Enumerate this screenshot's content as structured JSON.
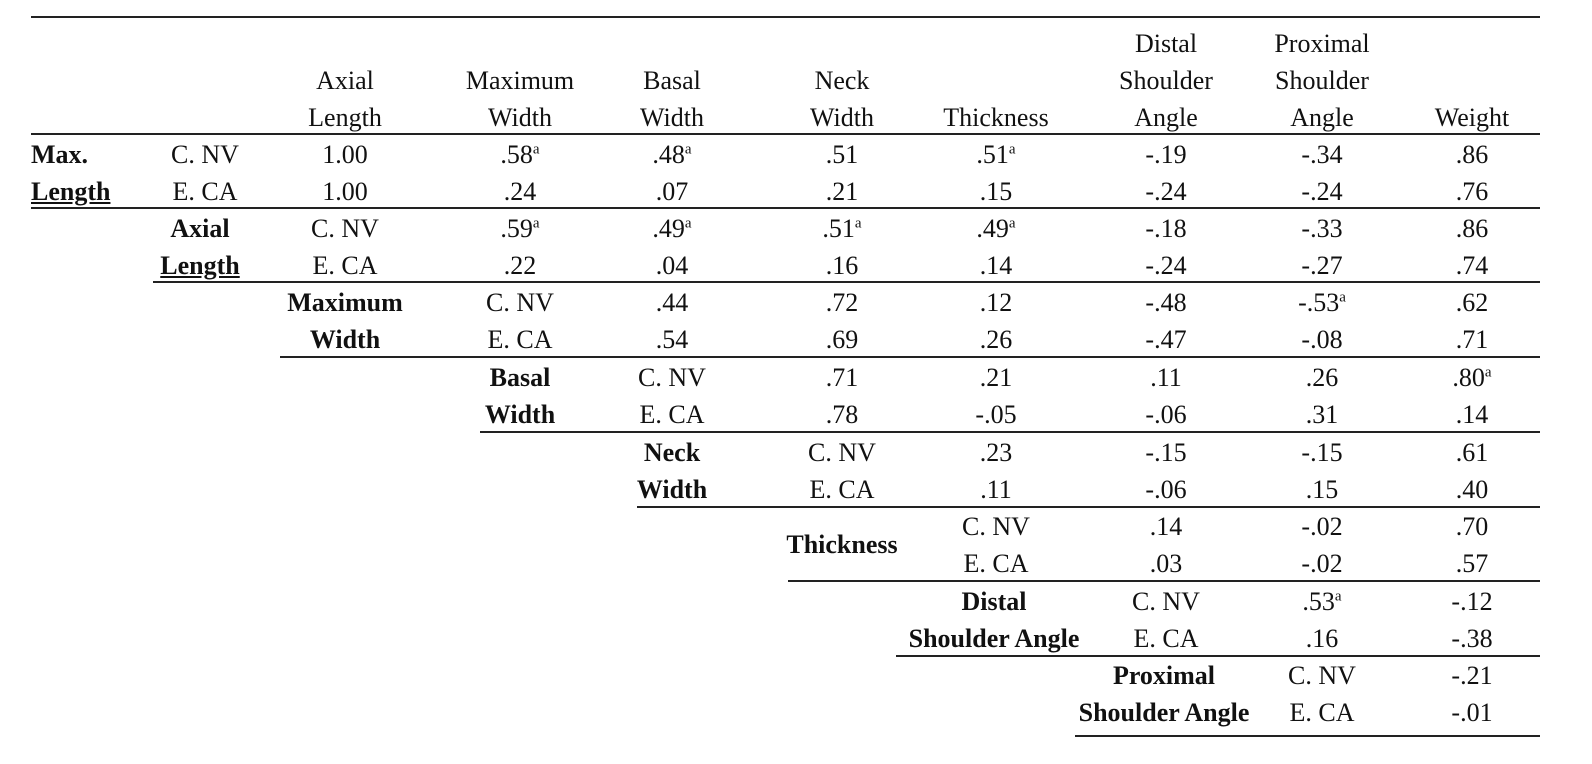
{
  "columns": [
    "Axial Length",
    "Maximum Width",
    "Basal Width",
    "Neck Width",
    "Thickness",
    "Distal Shoulder Angle",
    "Proximal Shoulder Angle",
    "Weight"
  ],
  "header_lines": {
    "axial": [
      "Axial",
      "Length"
    ],
    "maxw": [
      "Maximum",
      "Width"
    ],
    "basal": [
      "Basal",
      "Width"
    ],
    "neck": [
      "Neck",
      "Width"
    ],
    "thick": [
      "Thickness"
    ],
    "distal": [
      "Distal",
      "Shoulder",
      "Angle"
    ],
    "prox": [
      "Proximal",
      "Shoulder",
      "Angle"
    ],
    "weight": [
      "Weight"
    ]
  },
  "groups": {
    "maxlen": [
      "Max.",
      "Length"
    ],
    "axial": [
      "Axial",
      "Length"
    ],
    "maxw": [
      "Maximum",
      "Width"
    ],
    "basal": [
      "Basal",
      "Width"
    ],
    "neck": [
      "Neck",
      "Width"
    ],
    "thick": [
      "Thickness"
    ],
    "distal": [
      "Distal",
      "Shoulder Angle"
    ],
    "prox": [
      "Proximal",
      "Shoulder Angle"
    ]
  },
  "subgroups": [
    "C. NV",
    "E. CA"
  ],
  "footnote_marker": "a",
  "rows": {
    "maxlen": {
      "cnv": [
        "1.00",
        ".58",
        ".48",
        ".51",
        ".51",
        "-.19",
        "-.34",
        ".86"
      ],
      "eca": [
        "1.00",
        ".24",
        ".07",
        ".21",
        ".15",
        "-.24",
        "-.24",
        ".76"
      ]
    },
    "axial": {
      "cnv": [
        ".59",
        ".49",
        ".51",
        ".49",
        "-.18",
        "-.33",
        ".86"
      ],
      "eca": [
        ".22",
        ".04",
        ".16",
        ".14",
        "-.24",
        "-.27",
        ".74"
      ]
    },
    "maxw": {
      "cnv": [
        ".44",
        ".72",
        ".12",
        "-.48",
        "-.53",
        ".62"
      ],
      "eca": [
        ".54",
        ".69",
        ".26",
        "-.47",
        "-.08",
        ".71"
      ]
    },
    "basal": {
      "cnv": [
        ".71",
        ".21",
        ".11",
        ".26",
        ".80"
      ],
      "eca": [
        ".78",
        "-.05",
        "-.06",
        ".31",
        ".14"
      ]
    },
    "neck": {
      "cnv": [
        ".23",
        "-.15",
        "-.15",
        ".61"
      ],
      "eca": [
        ".11",
        "-.06",
        ".15",
        ".40"
      ]
    },
    "thick": {
      "cnv": [
        ".14",
        "-.02",
        ".70"
      ],
      "eca": [
        ".03",
        "-.02",
        ".57"
      ]
    },
    "distal": {
      "cnv": [
        ".53",
        "-.12"
      ],
      "eca": [
        ".16",
        "-.38"
      ]
    },
    "prox": {
      "cnv": [
        "-.21"
      ],
      "eca": [
        "-.01"
      ]
    }
  }
}
